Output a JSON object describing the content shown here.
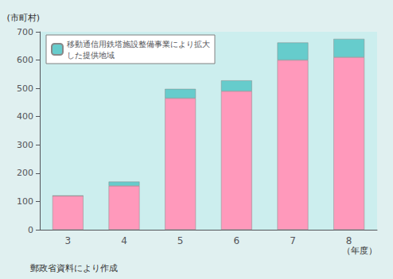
{
  "chart_data": {
    "type": "bar",
    "stacked": true,
    "categories": [
      "3",
      "4",
      "5",
      "6",
      "7",
      "8"
    ],
    "series": [
      {
        "color": "#FF99BB",
        "values": [
          120,
          155,
          465,
          490,
          600,
          610
        ]
      },
      {
        "name": "移動通信用鉄塔施設整備事業により拡大\nした提供地域",
        "color": "#66CCCC",
        "values": [
          0,
          15,
          33,
          38,
          62,
          65
        ]
      }
    ],
    "ylabel": "(市町村)",
    "xlabel": "（年度）",
    "annotations": [
      "郵政省資料により作成"
    ],
    "ylim": [
      0,
      700
    ],
    "yticks": [
      0,
      100,
      200,
      300,
      400,
      500,
      600,
      700
    ],
    "grid": false,
    "legend": "upper left"
  }
}
